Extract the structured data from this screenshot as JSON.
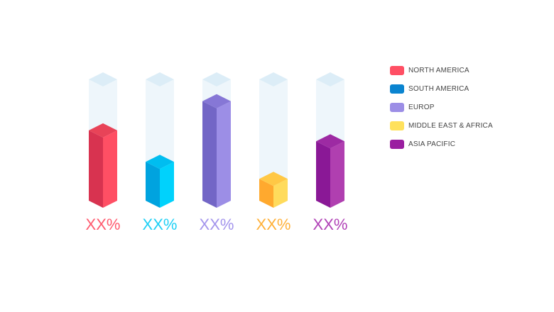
{
  "chart_data": {
    "type": "bar",
    "style": "3d-isometric",
    "categories": [
      "NORTH AMERICA",
      "SOUTH AMERICA",
      "EUROP",
      "MIDDLE EAST & AFRICA",
      "ASIA PACIFIC"
    ],
    "relative_levels": [
      0.58,
      0.32,
      0.82,
      0.18,
      0.49
    ],
    "data_labels": [
      "XX%",
      "XX%",
      "XX%",
      "XX%",
      "XX%"
    ],
    "colors": [
      {
        "front": "#ff4f64",
        "side": "#d83350",
        "top": "#e84358",
        "label": "#ff5a6e"
      },
      {
        "front": "#00d2fc",
        "side": "#00a3df",
        "top": "#00bdf0",
        "label": "#1fd0f5"
      },
      {
        "front": "#9c8ee6",
        "side": "#7366c6",
        "top": "#8677d6",
        "label": "#a394ec"
      },
      {
        "front": "#ffdb5c",
        "side": "#ffa92e",
        "top": "#ffc845",
        "label": "#ffb038"
      },
      {
        "front": "#b03fb0",
        "side": "#8a1896",
        "top": "#9d2aa3",
        "label": "#b040b6"
      }
    ],
    "track_color": "#eef6fb",
    "track_top_color": "#dcedf7",
    "legend": {
      "position": "right",
      "items": [
        {
          "label": "NORTH AMERICA",
          "color": "#ff4f64"
        },
        {
          "label": "SOUTH AMERICA",
          "color": "#0a84d0"
        },
        {
          "label": "EUROP",
          "color": "#9c8ee6"
        },
        {
          "label": "MIDDLE EAST & AFRICA",
          "color": "#ffe15c"
        },
        {
          "label": "ASIA PACIFIC",
          "color": "#9a1ea0"
        }
      ]
    }
  }
}
